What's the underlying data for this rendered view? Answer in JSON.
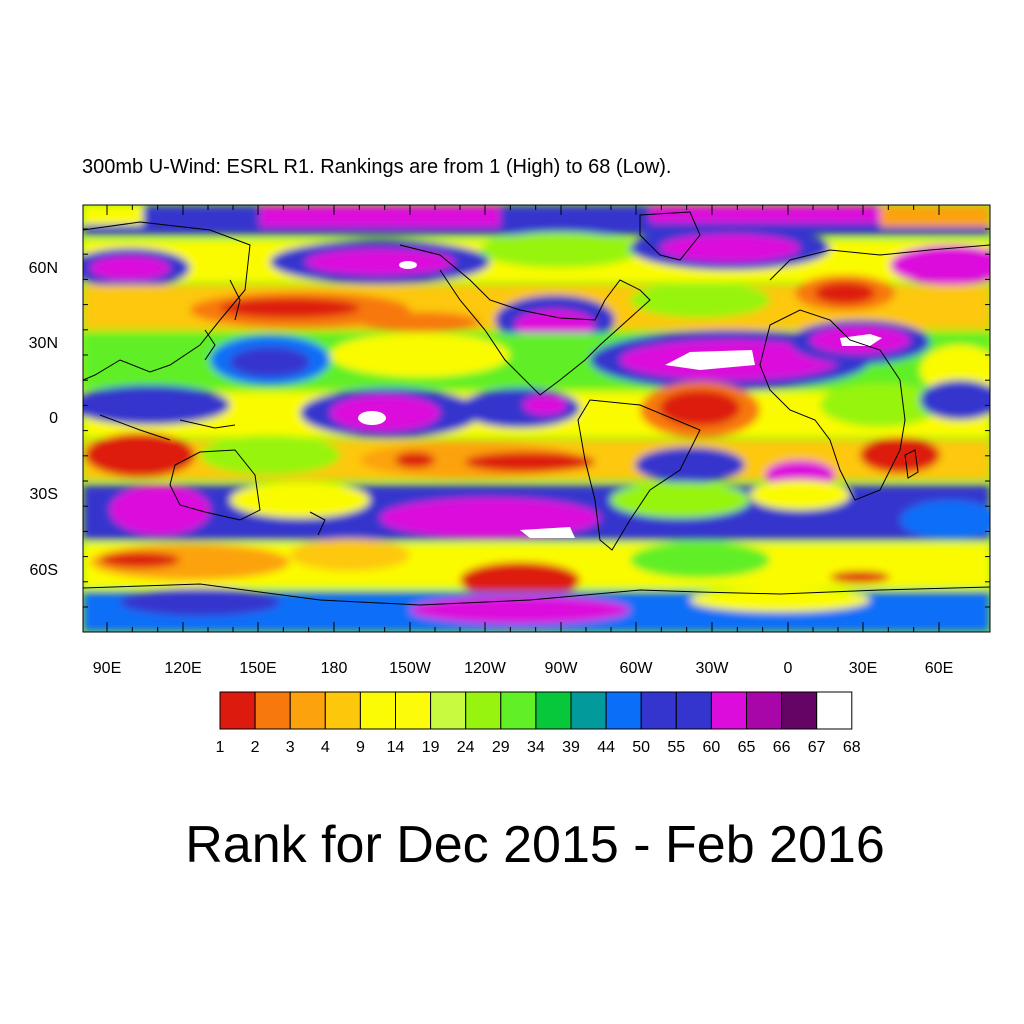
{
  "subtitle": "300mb U-Wind: ESRL R1. Rankings are from 1 (High) to 68 (Low).",
  "title": "Rank for Dec 2015 - Feb 2016",
  "axes": {
    "lat_labels": [
      "60N",
      "30N",
      "0",
      "30S",
      "60S"
    ],
    "lon_labels": [
      "90E",
      "120E",
      "150E",
      "180",
      "150W",
      "120W",
      "90W",
      "60W",
      "30W",
      "0",
      "30E",
      "60E"
    ]
  },
  "colorbar": {
    "colors": [
      "#dd1a0e",
      "#f7790d",
      "#fca20d",
      "#fdc80c",
      "#fbfb06",
      "#fbfb0a",
      "#c8fa40",
      "#97f40f",
      "#61ef26",
      "#06c83a",
      "#029a9a",
      "#0a6ef8",
      "#3434ce",
      "#3434ce",
      "#dc0ddc",
      "#a806a8",
      "#640464",
      "#ffffff"
    ],
    "labels": [
      "1",
      "2",
      "3",
      "4",
      "9",
      "14",
      "19",
      "24",
      "29",
      "34",
      "39",
      "44",
      "50",
      "55",
      "60",
      "65",
      "66",
      "67",
      "68"
    ]
  }
}
